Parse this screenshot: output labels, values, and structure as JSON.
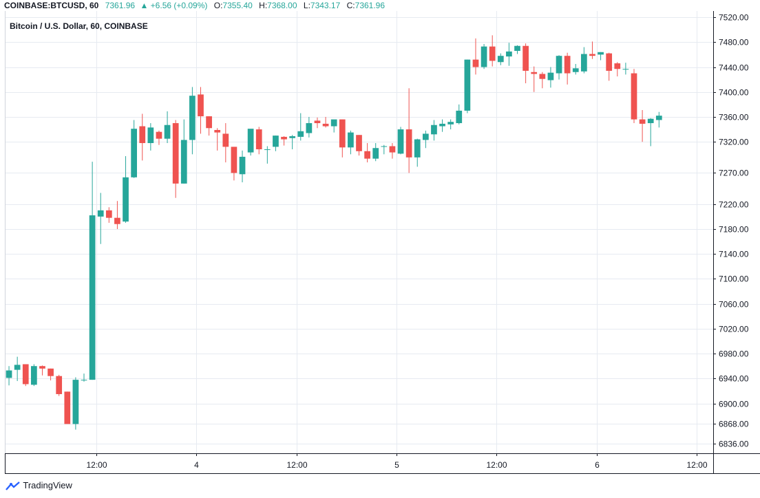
{
  "header": {
    "symbol": "COINBASE:BTCUSD, 60",
    "last": "7361.96",
    "change": "+6.56 (+0.09%)",
    "o_label": "O:",
    "o": "7355.40",
    "h_label": "H:",
    "h": "7368.00",
    "l_label": "L:",
    "l": "7343.17",
    "c_label": "C:",
    "c": "7361.96"
  },
  "footer": {
    "brand": "TradingView"
  },
  "colors": {
    "up": "#26a69a",
    "down": "#ef5350",
    "grid": "#e6eaf1",
    "axis": "#131722"
  },
  "chart_data": {
    "type": "candlestick",
    "title": "Bitcoin / U.S. Dollar, 60, COINBASE",
    "ylim": [
      6820,
      7530
    ],
    "yticks": [
      7520,
      7480,
      7440,
      7400,
      7360,
      7320,
      7270,
      7220,
      7180,
      7140,
      7100,
      7060,
      7020,
      6980,
      6940,
      6900,
      6868,
      6836
    ],
    "ytick_labels": [
      "7520.00",
      "7480.00",
      "7440.00",
      "7400.00",
      "7360.00",
      "7320.00",
      "7270.00",
      "7220.00",
      "7180.00",
      "7140.00",
      "7100.00",
      "7060.00",
      "7020.00",
      "6980.00",
      "6940.00",
      "6900.00",
      "6868.00",
      "6836.00"
    ],
    "xticks": [
      {
        "index": 10.5,
        "label": "12:00"
      },
      {
        "index": 22.5,
        "label": "4"
      },
      {
        "index": 34.5,
        "label": "12:00"
      },
      {
        "index": 46.5,
        "label": "5"
      },
      {
        "index": 58.5,
        "label": "12:00"
      },
      {
        "index": 70.5,
        "label": "6"
      },
      {
        "index": 82.5,
        "label": "12:00"
      }
    ],
    "x_span": [
      -0.5,
      84.5
    ],
    "current_price": 7361.96,
    "ohlc": [
      [
        6941,
        6960,
        6929,
        6953
      ],
      [
        6954,
        6975,
        6936,
        6962
      ],
      [
        6963,
        6963,
        6928,
        6931
      ],
      [
        6930,
        6963,
        6928,
        6960
      ],
      [
        6960,
        6961,
        6945,
        6956
      ],
      [
        6956,
        6956,
        6937,
        6944
      ],
      [
        6944,
        6946,
        6912,
        6915
      ],
      [
        6919,
        6919,
        6868,
        6867
      ],
      [
        6867,
        6942,
        6858,
        6938
      ],
      [
        6938,
        6948,
        6935,
        6938
      ],
      [
        6938,
        7288,
        6938,
        7202
      ],
      [
        7200,
        7238,
        7156,
        7210
      ],
      [
        7210,
        7215,
        7190,
        7198
      ],
      [
        7198,
        7225,
        7180,
        7188
      ],
      [
        7192,
        7297,
        7190,
        7263
      ],
      [
        7263,
        7355,
        7262,
        7341
      ],
      [
        7345,
        7365,
        7290,
        7318
      ],
      [
        7318,
        7350,
        7306,
        7343
      ],
      [
        7336,
        7338,
        7315,
        7325
      ],
      [
        7325,
        7369,
        7318,
        7347
      ],
      [
        7350,
        7355,
        7230,
        7253
      ],
      [
        7253,
        7356,
        7253,
        7323
      ],
      [
        7323,
        7408,
        7300,
        7394
      ],
      [
        7396,
        7408,
        7333,
        7361
      ],
      [
        7361,
        7361,
        7330,
        7342
      ],
      [
        7339,
        7342,
        7306,
        7335
      ],
      [
        7333,
        7350,
        7287,
        7312
      ],
      [
        7312,
        7312,
        7258,
        7270
      ],
      [
        7268,
        7306,
        7255,
        7296
      ],
      [
        7303,
        7340,
        7298,
        7341
      ],
      [
        7340,
        7344,
        7300,
        7308
      ],
      [
        7307,
        7313,
        7285,
        7308
      ],
      [
        7312,
        7330,
        7305,
        7330
      ],
      [
        7328,
        7329,
        7314,
        7324
      ],
      [
        7326,
        7331,
        7308,
        7329
      ],
      [
        7328,
        7366,
        7322,
        7337
      ],
      [
        7334,
        7360,
        7327,
        7350
      ],
      [
        7354,
        7359,
        7342,
        7350
      ],
      [
        7349,
        7360,
        7343,
        7345
      ],
      [
        7345,
        7355,
        7335,
        7356
      ],
      [
        7356,
        7356,
        7295,
        7311
      ],
      [
        7311,
        7338,
        7300,
        7335
      ],
      [
        7331,
        7331,
        7298,
        7305
      ],
      [
        7305,
        7318,
        7287,
        7293
      ],
      [
        7293,
        7318,
        7289,
        7310
      ],
      [
        7313,
        7315,
        7300,
        7313
      ],
      [
        7313,
        7318,
        7293,
        7303
      ],
      [
        7301,
        7344,
        7300,
        7340
      ],
      [
        7340,
        7406,
        7270,
        7295
      ],
      [
        7295,
        7325,
        7280,
        7324
      ],
      [
        7323,
        7338,
        7310,
        7333
      ],
      [
        7332,
        7355,
        7322,
        7347
      ],
      [
        7345,
        7356,
        7336,
        7349
      ],
      [
        7348,
        7356,
        7340,
        7352
      ],
      [
        7350,
        7380,
        7348,
        7370
      ],
      [
        7370,
        7452,
        7366,
        7452
      ],
      [
        7452,
        7486,
        7428,
        7440
      ],
      [
        7440,
        7477,
        7437,
        7473
      ],
      [
        7473,
        7491,
        7441,
        7450
      ],
      [
        7448,
        7462,
        7443,
        7458
      ],
      [
        7457,
        7479,
        7442,
        7465
      ],
      [
        7466,
        7475,
        7461,
        7474
      ],
      [
        7474,
        7478,
        7414,
        7434
      ],
      [
        7432,
        7441,
        7400,
        7429
      ],
      [
        7429,
        7432,
        7406,
        7421
      ],
      [
        7419,
        7440,
        7407,
        7431
      ],
      [
        7430,
        7459,
        7420,
        7458
      ],
      [
        7458,
        7463,
        7412,
        7430
      ],
      [
        7432,
        7445,
        7428,
        7438
      ],
      [
        7433,
        7472,
        7430,
        7461
      ],
      [
        7461,
        7481,
        7453,
        7458
      ],
      [
        7460,
        7464,
        7451,
        7464
      ],
      [
        7462,
        7463,
        7418,
        7434
      ],
      [
        7446,
        7448,
        7425,
        7437
      ],
      [
        7437,
        7447,
        7428,
        7437
      ],
      [
        7430,
        7437,
        7350,
        7356
      ],
      [
        7356,
        7371,
        7320,
        7349
      ],
      [
        7350,
        7358,
        7313,
        7357
      ],
      [
        7355,
        7368,
        7343,
        7362
      ]
    ]
  }
}
